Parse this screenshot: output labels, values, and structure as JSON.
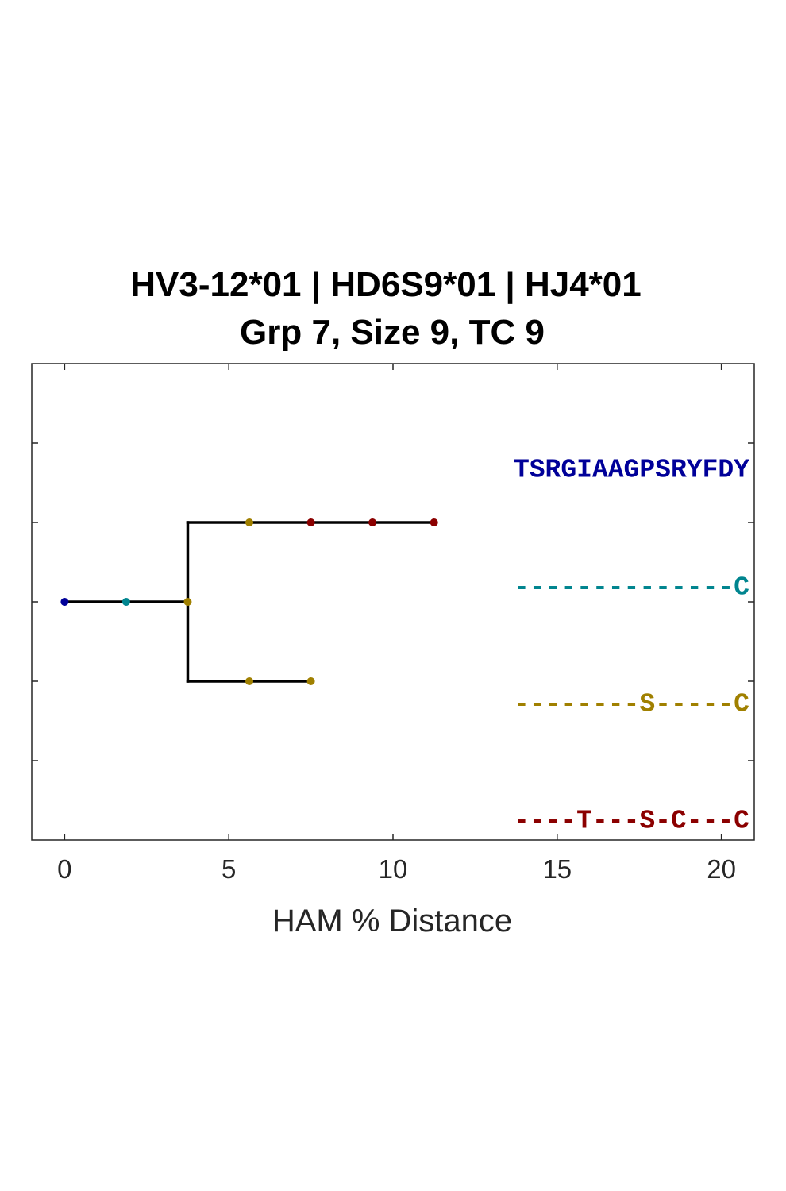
{
  "chart_data": {
    "type": "tree",
    "title": "HV3-12*01 | HD6S9*01 | HJ4*01",
    "subtitle": "Grp 7, Size 9, TC 9",
    "xlabel": "HAM % Distance",
    "ylabel": "",
    "xlim": [
      -1,
      21
    ],
    "ylim": [
      0,
      6
    ],
    "xticks": [
      0,
      5,
      10,
      15,
      20
    ],
    "xtick_labels": [
      "0",
      "5",
      "10",
      "15",
      "20"
    ],
    "yticks": [
      1,
      2,
      3,
      4,
      5
    ],
    "grid": false,
    "colors": {
      "navy": "#000099",
      "teal": "#00858f",
      "olive": "#a08000",
      "darkred": "#8b0000",
      "line": "#000000",
      "axis": "#262626"
    },
    "edges": [
      {
        "x": [
          0,
          3.75
        ],
        "y": [
          3,
          3
        ]
      },
      {
        "x": [
          3.75,
          3.75
        ],
        "y": [
          2,
          4
        ]
      },
      {
        "x": [
          3.75,
          11.25
        ],
        "y": [
          4,
          4
        ]
      },
      {
        "x": [
          3.75,
          7.5
        ],
        "y": [
          2,
          2
        ]
      }
    ],
    "nodes": [
      {
        "x": 0,
        "y": 3,
        "color": "#000099"
      },
      {
        "x": 1.875,
        "y": 3,
        "color": "#00858f"
      },
      {
        "x": 3.75,
        "y": 3,
        "color": "#a08000"
      },
      {
        "x": 5.625,
        "y": 4,
        "color": "#a08000"
      },
      {
        "x": 7.5,
        "y": 4,
        "color": "#8b0000"
      },
      {
        "x": 9.375,
        "y": 4,
        "color": "#8b0000"
      },
      {
        "x": 11.25,
        "y": 4,
        "color": "#8b0000"
      },
      {
        "x": 5.625,
        "y": 2,
        "color": "#a08000"
      },
      {
        "x": 7.5,
        "y": 2,
        "color": "#a08000"
      }
    ],
    "sequences": [
      {
        "text": "TSRGIAAGPSRYFDY",
        "color": "#000099",
        "y": 4.66
      },
      {
        "text": "--------------C",
        "color": "#00858f",
        "y": 3.18
      },
      {
        "text": "--------S-----C",
        "color": "#a08000",
        "y": 1.71
      },
      {
        "text": "----T---S-C---C",
        "color": "#8b0000",
        "y": 0.24
      }
    ]
  }
}
